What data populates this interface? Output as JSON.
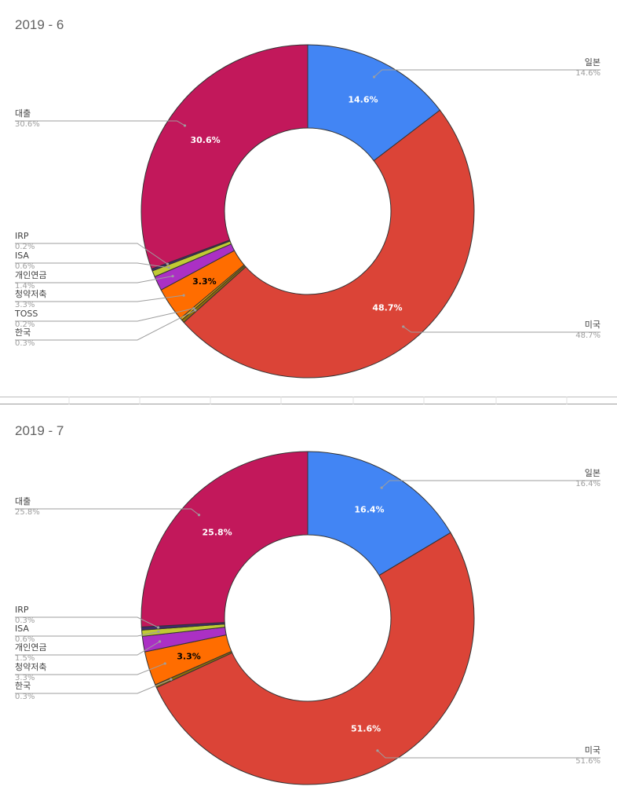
{
  "chart_data": [
    {
      "type": "pie",
      "donut": true,
      "title": "2019 - 6",
      "start": "top, clockwise",
      "slices": [
        {
          "label": "일본",
          "value": 14.6,
          "display": "14.6%",
          "color": "#4285f4",
          "inner_label": true,
          "inner_color": "#ffffff"
        },
        {
          "label": "미국",
          "value": 48.7,
          "display": "48.7%",
          "color": "#db4437",
          "inner_label": true,
          "inner_color": "#ffffff"
        },
        {
          "label": "한국",
          "value": 0.3,
          "display": "0.3%",
          "color": "#8d6e0a",
          "inner_label": false
        },
        {
          "label": "TOSS",
          "value": 0.2,
          "display": "0.2%",
          "color": "#f4b400",
          "inner_label": false
        },
        {
          "label": "청약저축",
          "value": 3.3,
          "display": "3.3%",
          "color": "#ff6d00",
          "inner_label": true,
          "inner_color": "#000000"
        },
        {
          "label": "개인연금",
          "value": 1.4,
          "display": "1.4%",
          "color": "#ab30c4",
          "inner_label": false
        },
        {
          "label": "ISA",
          "value": 0.6,
          "display": "0.6%",
          "color": "#c0ca33",
          "inner_label": false
        },
        {
          "label": "IRP",
          "value": 0.2,
          "display": "0.2%",
          "color": "#3f2a6e",
          "inner_label": false
        },
        {
          "label": "대출",
          "value": 30.6,
          "display": "30.6%",
          "color": "#c2185b",
          "inner_label": true,
          "inner_color": "#ffffff"
        }
      ]
    },
    {
      "type": "pie",
      "donut": true,
      "title": "2019 - 7",
      "start": "top, clockwise",
      "slices": [
        {
          "label": "일본",
          "value": 16.4,
          "display": "16.4%",
          "color": "#4285f4",
          "inner_label": true,
          "inner_color": "#ffffff"
        },
        {
          "label": "미국",
          "value": 51.6,
          "display": "51.6%",
          "color": "#db4437",
          "inner_label": true,
          "inner_color": "#ffffff"
        },
        {
          "label": "한국",
          "value": 0.3,
          "display": "0.3%",
          "color": "#8d6e0a",
          "inner_label": false
        },
        {
          "label": "청약저축",
          "value": 3.3,
          "display": "3.3%",
          "color": "#ff6d00",
          "inner_label": true,
          "inner_color": "#000000"
        },
        {
          "label": "개인연금",
          "value": 1.5,
          "display": "1.5%",
          "color": "#ab30c4",
          "inner_label": false
        },
        {
          "label": "ISA",
          "value": 0.6,
          "display": "0.6%",
          "color": "#c0ca33",
          "inner_label": false
        },
        {
          "label": "IRP",
          "value": 0.3,
          "display": "0.3%",
          "color": "#3f2a6e",
          "inner_label": false
        },
        {
          "label": "대출",
          "value": 25.8,
          "display": "25.8%",
          "color": "#c2185b",
          "inner_label": true,
          "inner_color": "#ffffff"
        }
      ]
    }
  ]
}
